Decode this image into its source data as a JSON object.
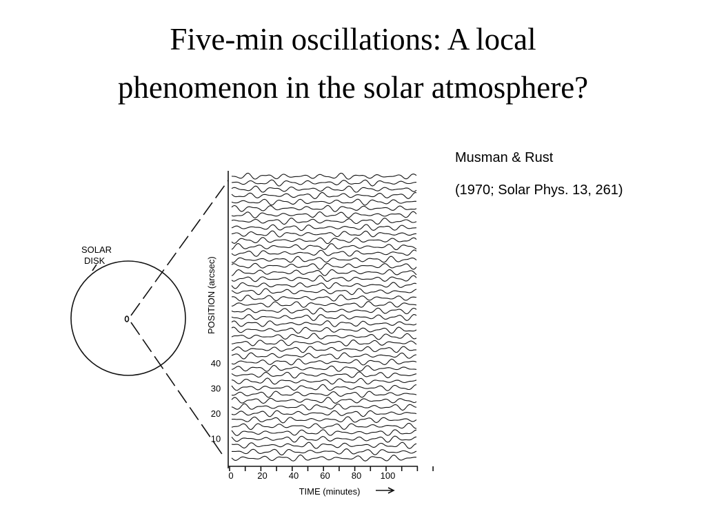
{
  "title": {
    "lines": [
      "Five-min oscillations: A local",
      "phenomenon in the solar atmosphere?"
    ]
  },
  "citation": {
    "authors": "Musman & Rust",
    "reference": "(1970; Solar Phys. 13, 261)"
  },
  "figure": {
    "disk_label": [
      "SOLAR",
      "DISK"
    ],
    "y_axis_label": "POSITION (arcsec)",
    "y_ticks": [
      "40",
      "30",
      "20",
      "10"
    ],
    "x_axis_label": "TIME (minutes)",
    "x_ticks": [
      "0",
      "20",
      "40",
      "60",
      "80",
      "100"
    ]
  }
}
